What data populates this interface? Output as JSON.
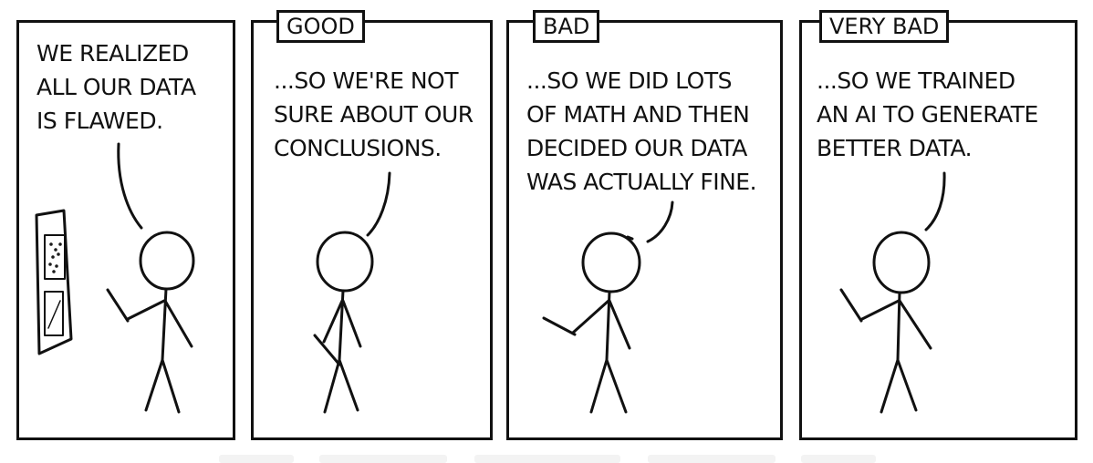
{
  "panels": [
    {
      "caption": "WE REALIZED\nALL OUR DATA\nIS FLAWED.",
      "label": ""
    },
    {
      "caption": "...SO WE'RE NOT\nSURE ABOUT OUR\nCONCLUSIONS.",
      "label": "GOOD"
    },
    {
      "caption": "...SO WE DID LOTS\nOF MATH AND THEN\nDECIDED OUR DATA\nWAS ACTUALLY FINE.",
      "label": "BAD"
    },
    {
      "caption": "...SO WE TRAINED\nAN AI TO GENERATE\nBETTER DATA.",
      "label": "VERY BAD"
    }
  ]
}
